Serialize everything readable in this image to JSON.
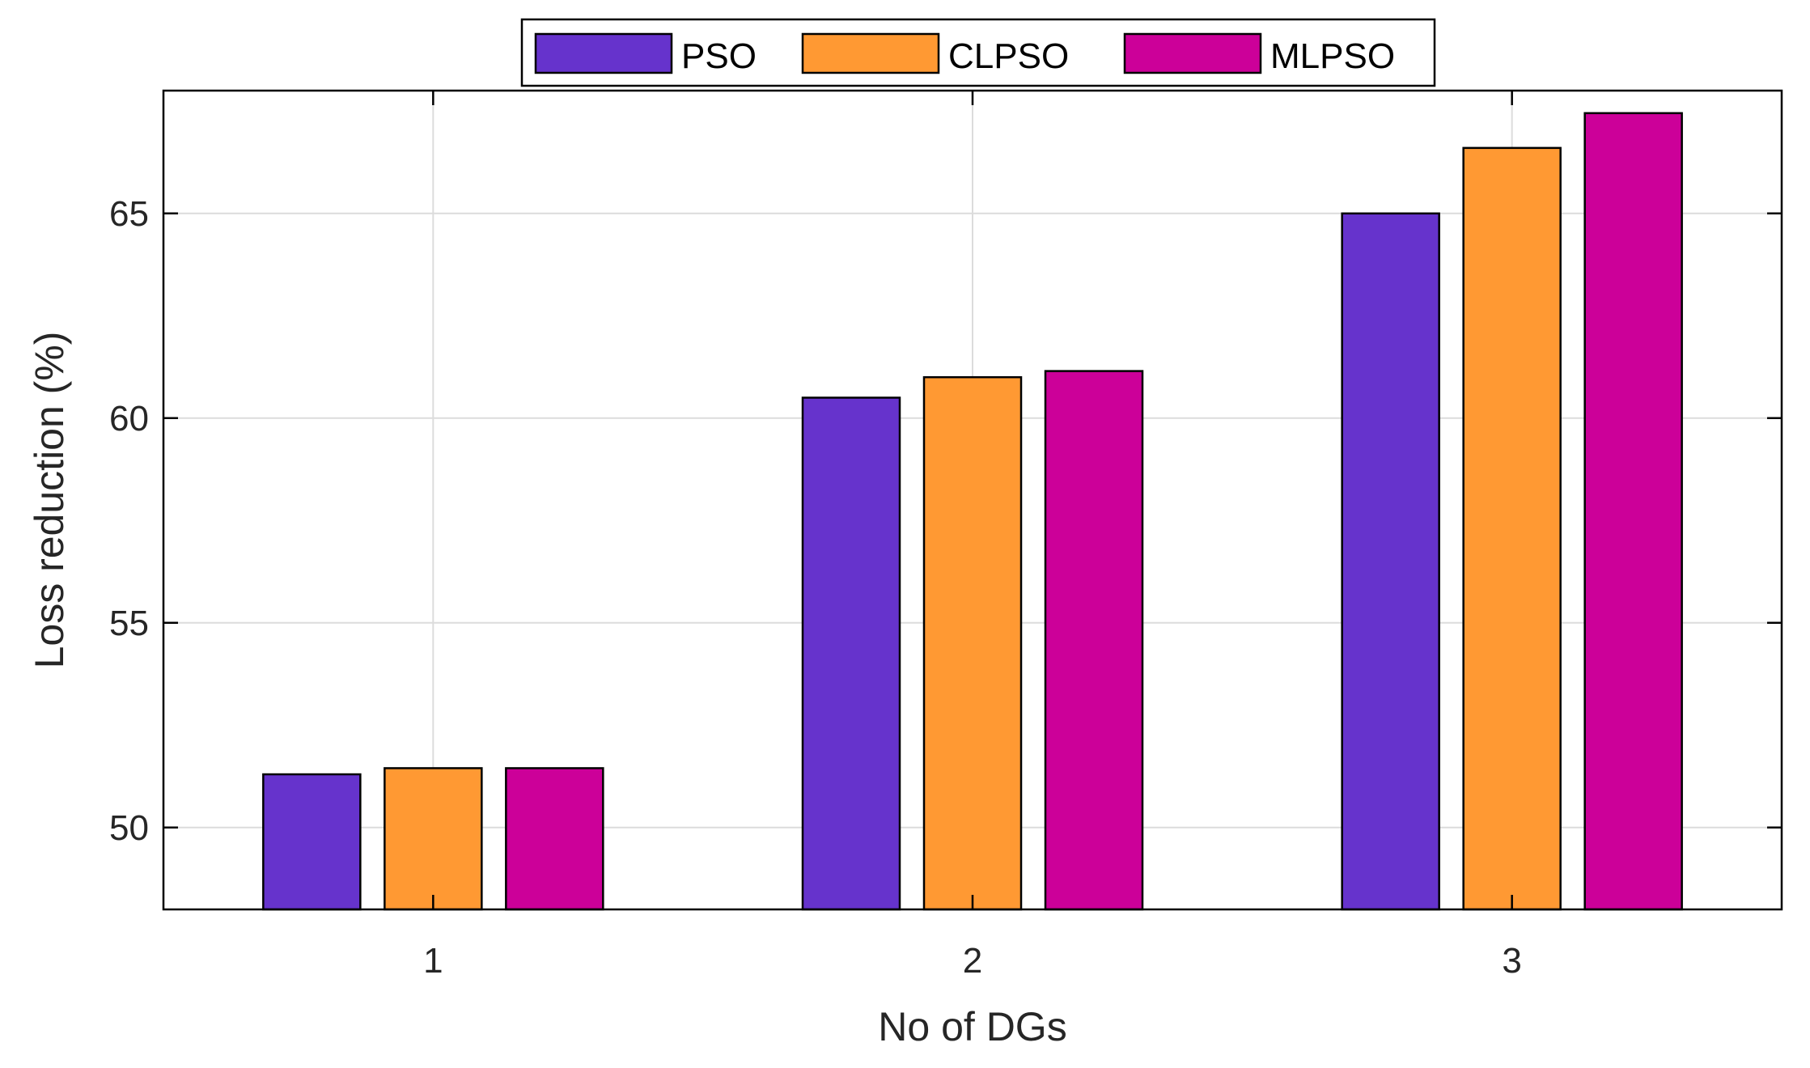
{
  "chart_data": {
    "type": "bar",
    "title": "",
    "xlabel": "No of DGs",
    "ylabel": "Loss reduction (%)",
    "categories": [
      "1",
      "2",
      "3"
    ],
    "series": [
      {
        "name": "PSO",
        "color": "#6633CC",
        "values": [
          51.3,
          60.5,
          65.0
        ]
      },
      {
        "name": "CLPSO",
        "color": "#FF9933",
        "values": [
          51.45,
          61.0,
          66.6
        ]
      },
      {
        "name": "MLPSO",
        "color": "#CC0099",
        "values": [
          51.45,
          61.15,
          67.45
        ]
      }
    ],
    "ylim": [
      48,
      68
    ],
    "yticks": [
      50,
      55,
      60,
      65
    ],
    "ytick_labels": [
      "50",
      "55",
      "60",
      "65"
    ],
    "grid": true,
    "legend_position": "top-center"
  }
}
